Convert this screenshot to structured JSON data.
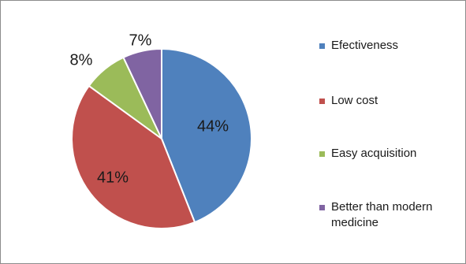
{
  "chart_data": {
    "type": "pie",
    "title": "",
    "categories": [
      "Efectiveness",
      "Low cost",
      "Easy acquisition",
      "Better than modern medicine"
    ],
    "values": [
      44,
      41,
      8,
      7
    ],
    "value_labels": [
      "44%",
      "41%",
      "8%",
      "7%"
    ],
    "colors": [
      "#4f81bd",
      "#c0504d",
      "#9bbb59",
      "#8064a2"
    ],
    "legend": {
      "placement": "right",
      "items": [
        {
          "label": "Efectiveness",
          "color": "#4f81bd"
        },
        {
          "label": "Low cost",
          "color": "#c0504d"
        },
        {
          "label": "Easy acquisition",
          "color": "#9bbb59"
        },
        {
          "label": "Better than modern medicine",
          "color": "#8064a2"
        }
      ]
    }
  }
}
